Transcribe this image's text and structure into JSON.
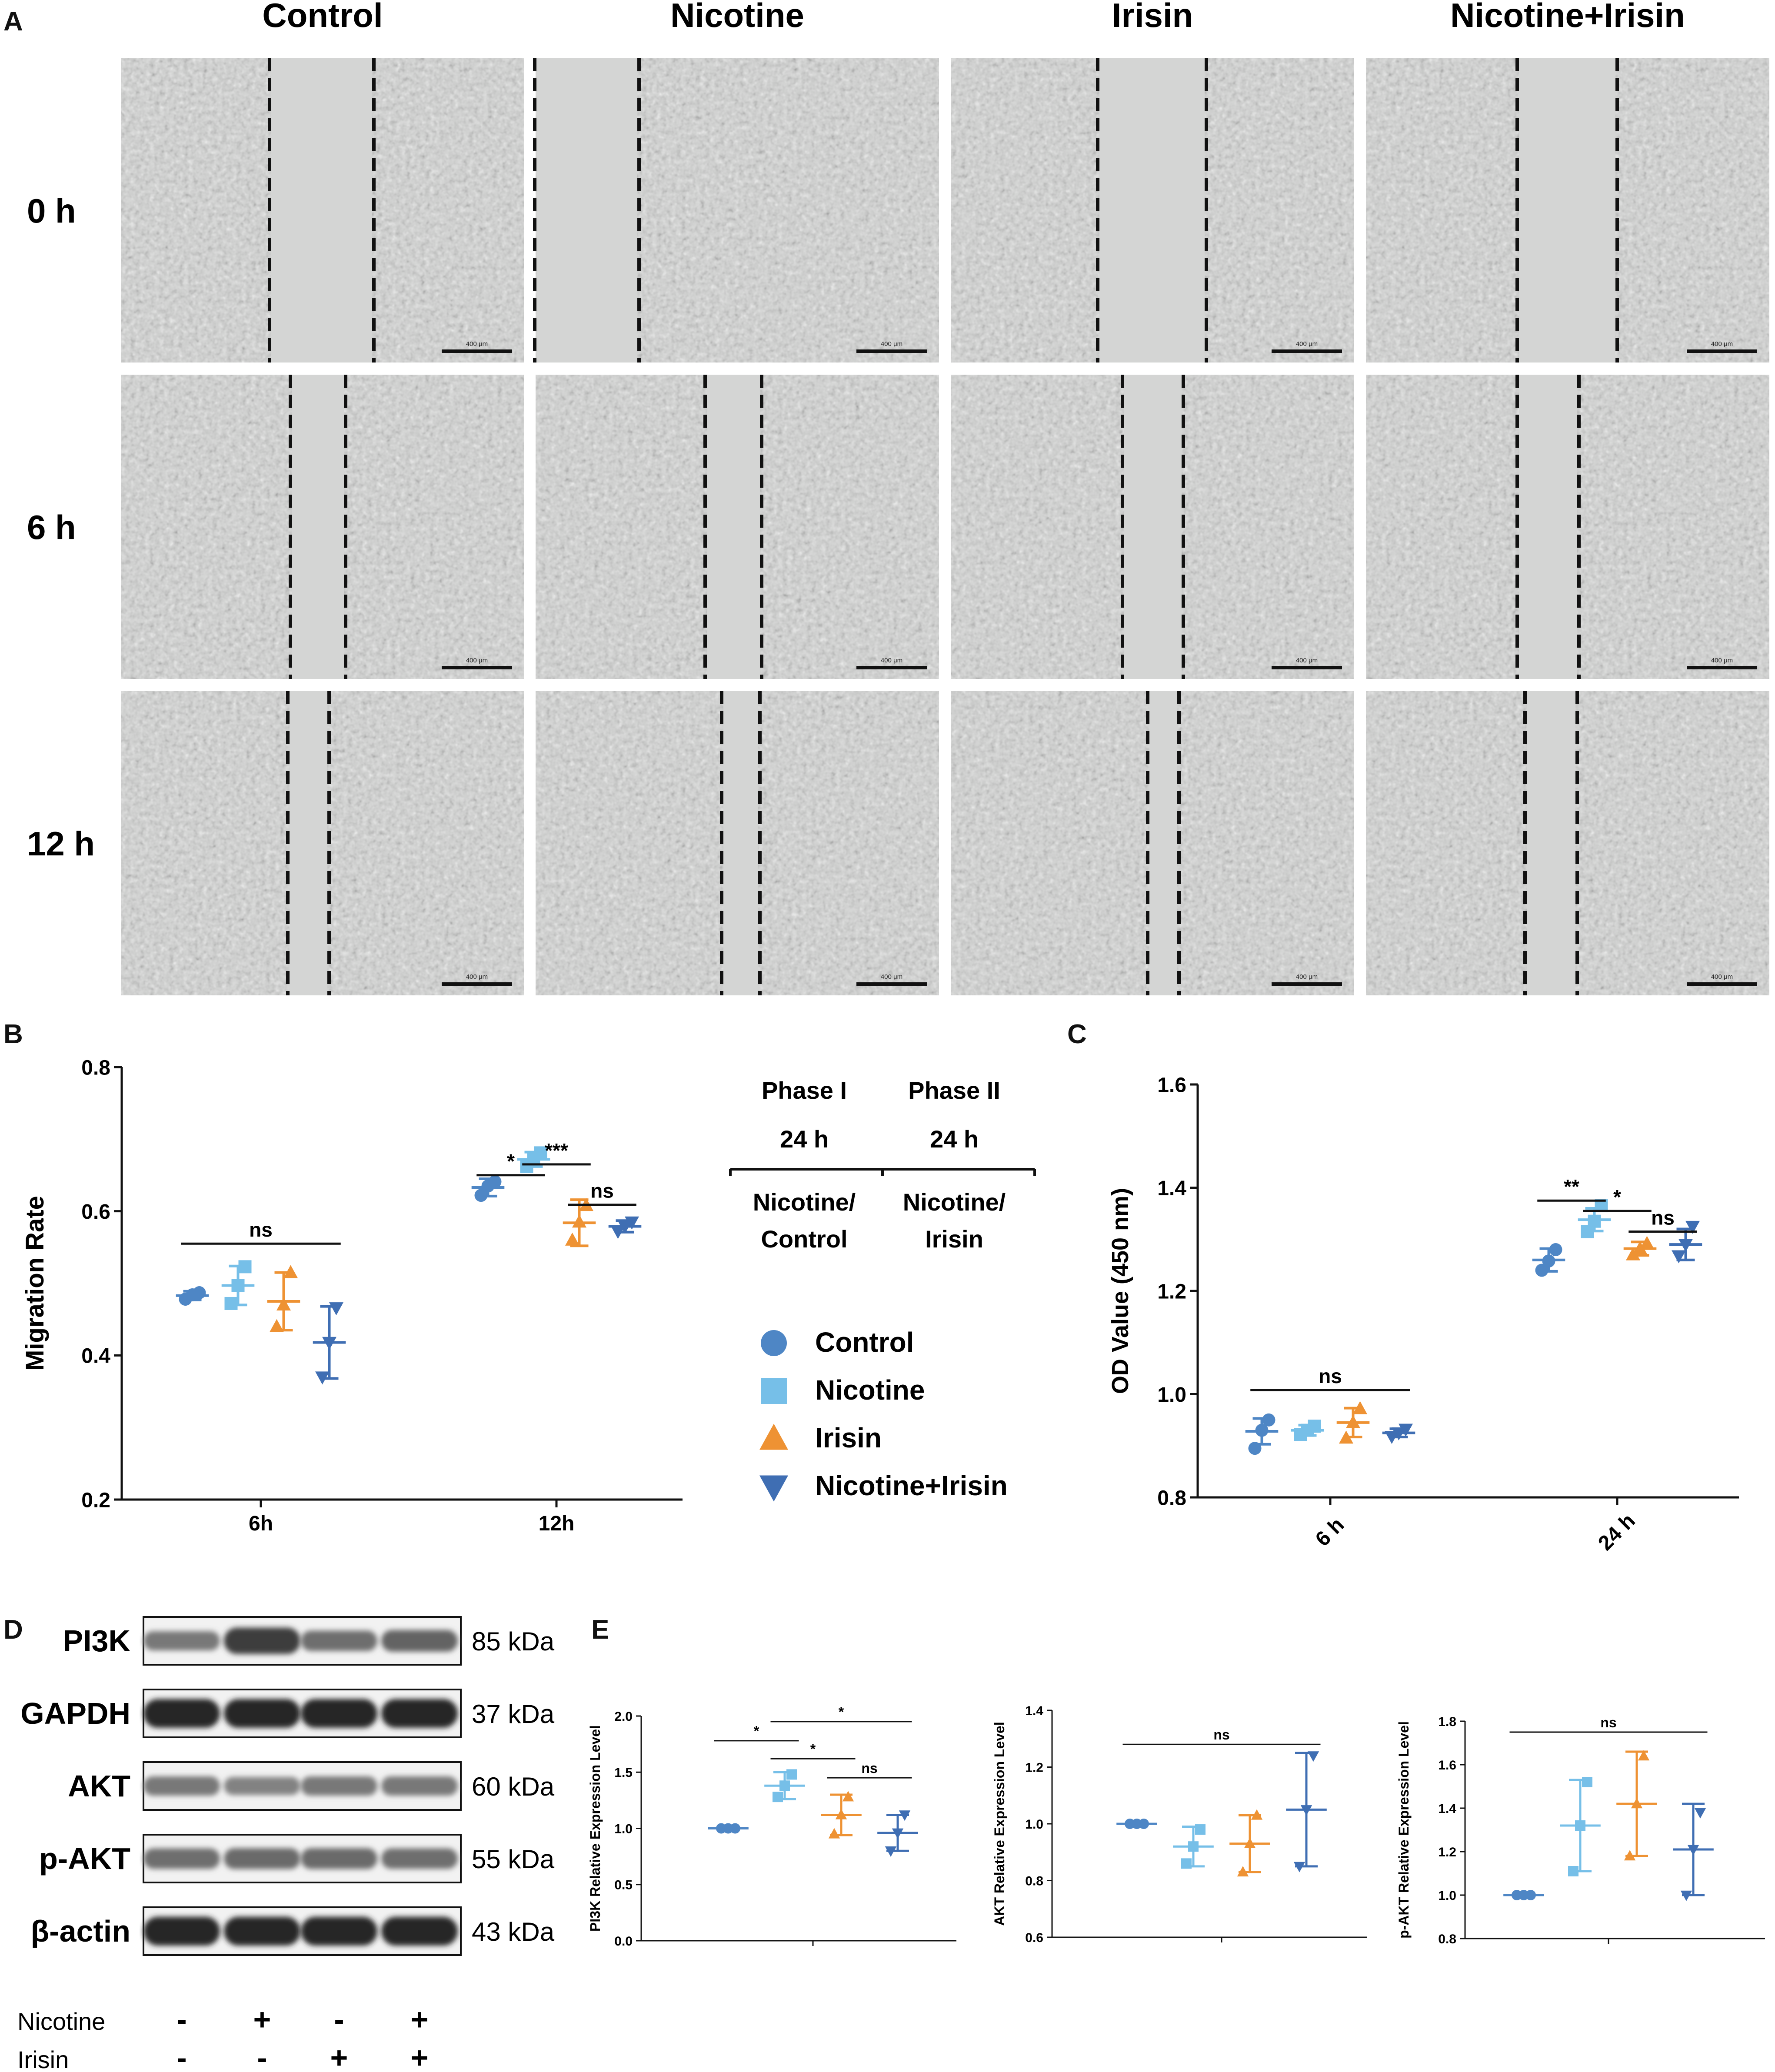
{
  "colors": {
    "control": "#4e86c5",
    "nicotine": "#76bfe8",
    "irisin": "#ee9233",
    "nicotine_irisin": "#3f6eb3",
    "micrograph_bg": "#cfd0cf",
    "axis": "#111111"
  },
  "panel_labels": {
    "a": "A",
    "b": "B",
    "c": "C",
    "d": "D",
    "e": "E"
  },
  "panel_a": {
    "columns": [
      "Control",
      "Nicotine",
      "Irisin",
      "Nicotine+Irisin"
    ],
    "rows": [
      "0 h",
      "6 h",
      "12 h"
    ],
    "scale_bar": "400 μm"
  },
  "chart_data": [
    {
      "id": "B",
      "type": "scatter",
      "ylabel": "Migration Rate",
      "ylim": [
        0.2,
        0.8
      ],
      "yticks": [
        "0.2",
        "0.4",
        "0.6",
        "0.8"
      ],
      "categories": [
        "6h",
        "12h"
      ],
      "series": [
        {
          "name": "Control",
          "values": [
            0.483,
            0.633
          ],
          "sd": [
            0.006,
            0.012
          ],
          "points": [
            [
              0.478,
              0.484,
              0.487
            ],
            [
              0.622,
              0.635,
              0.641
            ]
          ]
        },
        {
          "name": "Nicotine",
          "values": [
            0.497,
            0.672
          ],
          "sd": [
            0.027,
            0.01
          ],
          "points": [
            [
              0.472,
              0.497,
              0.523
            ],
            [
              0.662,
              0.672,
              0.681
            ]
          ]
        },
        {
          "name": "Irisin",
          "values": [
            0.475,
            0.584
          ],
          "sd": [
            0.04,
            0.032
          ],
          "points": [
            [
              0.44,
              0.47,
              0.515
            ],
            [
              0.56,
              0.585,
              0.608
            ]
          ]
        },
        {
          "name": "Nicotine+Irisin",
          "values": [
            0.418,
            0.579
          ],
          "sd": [
            0.05,
            0.008
          ],
          "points": [
            [
              0.37,
              0.418,
              0.466
            ],
            [
              0.572,
              0.579,
              0.585
            ]
          ]
        }
      ],
      "annotations": [
        {
          "text": "ns",
          "category": 0,
          "from": 0,
          "to": 3,
          "y": 0.555
        },
        {
          "text": "*",
          "category": 1,
          "from": 0,
          "to": 1,
          "y": 0.65
        },
        {
          "text": "***",
          "category": 1,
          "from": 1,
          "to": 2,
          "y": 0.665
        },
        {
          "text": "ns",
          "category": 1,
          "from": 2,
          "to": 3,
          "y": 0.609
        }
      ],
      "phase_table": {
        "headers": [
          "Phase I",
          "Phase II"
        ],
        "durations": [
          "24 h",
          "24 h"
        ],
        "treatments": [
          [
            "Nicotine/",
            "Control"
          ],
          [
            "Nicotine/",
            "Irisin"
          ]
        ]
      },
      "legend": [
        "Control",
        "Nicotine",
        "Irisin",
        "Nicotine+Irisin"
      ]
    },
    {
      "id": "C",
      "type": "scatter",
      "ylabel": "OD Value (450 nm)",
      "ylim": [
        0.8,
        1.6
      ],
      "yticks": [
        "0.8",
        "1.0",
        "1.2",
        "1.4",
        "1.6"
      ],
      "categories": [
        "6 h",
        "24 h"
      ],
      "series": [
        {
          "name": "Control",
          "values": [
            0.928,
            1.26
          ],
          "sd": [
            0.025,
            0.022
          ],
          "points": [
            [
              0.895,
              0.93,
              0.95
            ],
            [
              1.24,
              1.258,
              1.28
            ]
          ]
        },
        {
          "name": "Nicotine",
          "values": [
            0.93,
            1.338
          ],
          "sd": [
            0.01,
            0.022
          ],
          "points": [
            [
              0.922,
              0.93,
              0.938
            ],
            [
              1.315,
              1.335,
              1.365
            ]
          ]
        },
        {
          "name": "Irisin",
          "values": [
            0.945,
            1.282
          ],
          "sd": [
            0.028,
            0.013
          ],
          "points": [
            [
              0.915,
              0.945,
              0.972
            ],
            [
              1.27,
              1.282,
              1.292
            ]
          ]
        },
        {
          "name": "Nicotine+Irisin",
          "values": [
            0.925,
            1.29
          ],
          "sd": [
            0.008,
            0.03
          ],
          "points": [
            [
              0.918,
              0.925,
              0.932
            ],
            [
              1.268,
              1.29,
              1.325
            ]
          ]
        }
      ],
      "annotations": [
        {
          "text": "ns",
          "category": 0,
          "from": 0,
          "to": 3,
          "y": 1.008
        },
        {
          "text": "**",
          "category": 1,
          "from": 0,
          "to": 1,
          "y": 1.375
        },
        {
          "text": "*",
          "category": 1,
          "from": 1,
          "to": 2,
          "y": 1.355
        },
        {
          "text": "ns",
          "category": 1,
          "from": 2,
          "to": 3,
          "y": 1.315
        }
      ]
    },
    {
      "id": "E1",
      "type": "scatter",
      "ylabel": "PI3K Relative Expression Level",
      "ylim": [
        0,
        2.0
      ],
      "yticks": [
        "0.0",
        "0.5",
        "1.0",
        "1.5",
        "2.0"
      ],
      "categories": [
        ""
      ],
      "series": [
        {
          "name": "Control",
          "values": [
            1.0
          ],
          "sd": [
            0.0
          ],
          "points": [
            [
              1.0,
              1.0,
              1.0
            ]
          ]
        },
        {
          "name": "Nicotine",
          "values": [
            1.38
          ],
          "sd": [
            0.12
          ],
          "points": [
            [
              1.28,
              1.38,
              1.48
            ]
          ]
        },
        {
          "name": "Irisin",
          "values": [
            1.12
          ],
          "sd": [
            0.18
          ],
          "points": [
            [
              0.95,
              1.12,
              1.28
            ]
          ]
        },
        {
          "name": "Nicotine+Irisin",
          "values": [
            0.96
          ],
          "sd": [
            0.16
          ],
          "points": [
            [
              0.8,
              0.96,
              1.12
            ]
          ]
        }
      ],
      "annotations": [
        {
          "text": "*",
          "category": 0,
          "from": 0,
          "to": 1,
          "y": 1.78
        },
        {
          "text": "*",
          "category": 0,
          "from": 1,
          "to": 3,
          "y": 1.95
        },
        {
          "text": "*",
          "category": 0,
          "from": 1,
          "to": 2,
          "y": 1.62
        },
        {
          "text": "ns",
          "category": 0,
          "from": 2,
          "to": 3,
          "y": 1.45
        }
      ]
    },
    {
      "id": "E2",
      "type": "scatter",
      "ylabel": "AKT Relative Expression Level",
      "ylim": [
        0.6,
        1.4
      ],
      "yticks": [
        "0.6",
        "0.8",
        "1.0",
        "1.2",
        "1.4"
      ],
      "categories": [
        ""
      ],
      "series": [
        {
          "name": "Control",
          "values": [
            1.0
          ],
          "sd": [
            0.0
          ],
          "points": [
            [
              1.0,
              1.0,
              1.0
            ]
          ]
        },
        {
          "name": "Nicotine",
          "values": [
            0.92
          ],
          "sd": [
            0.07
          ],
          "points": [
            [
              0.86,
              0.92,
              0.98
            ]
          ]
        },
        {
          "name": "Irisin",
          "values": [
            0.93
          ],
          "sd": [
            0.1
          ],
          "points": [
            [
              0.83,
              0.93,
              1.03
            ]
          ]
        },
        {
          "name": "Nicotine+Irisin",
          "values": [
            1.05
          ],
          "sd": [
            0.2
          ],
          "points": [
            [
              0.85,
              1.05,
              1.24
            ]
          ]
        }
      ],
      "annotations": [
        {
          "text": "ns",
          "category": 0,
          "from": 0,
          "to": 3,
          "y": 1.28
        }
      ]
    },
    {
      "id": "E3",
      "type": "scatter",
      "ylabel": "p-AKT Relative Expression Level",
      "ylim": [
        0.8,
        1.8
      ],
      "yticks": [
        "0.8",
        "1.0",
        "1.2",
        "1.4",
        "1.6",
        "1.8"
      ],
      "categories": [
        ""
      ],
      "series": [
        {
          "name": "Control",
          "values": [
            1.0
          ],
          "sd": [
            0.0
          ],
          "points": [
            [
              1.0,
              1.0,
              1.0
            ]
          ]
        },
        {
          "name": "Nicotine",
          "values": [
            1.32
          ],
          "sd": [
            0.21
          ],
          "points": [
            [
              1.11,
              1.32,
              1.52
            ]
          ]
        },
        {
          "name": "Irisin",
          "values": [
            1.42
          ],
          "sd": [
            0.24
          ],
          "points": [
            [
              1.18,
              1.42,
              1.64
            ]
          ]
        },
        {
          "name": "Nicotine+Irisin",
          "values": [
            1.21
          ],
          "sd": [
            0.21
          ],
          "points": [
            [
              1.0,
              1.21,
              1.38
            ]
          ]
        }
      ],
      "annotations": [
        {
          "text": "ns",
          "category": 0,
          "from": 0,
          "to": 3,
          "y": 1.75
        }
      ]
    }
  ],
  "panel_d": {
    "proteins": [
      {
        "name": "PI3K",
        "size": "85 kDa",
        "intensity": [
          0.55,
          0.85,
          0.6,
          0.65
        ]
      },
      {
        "name": "GAPDH",
        "size": "37 kDa",
        "intensity": [
          0.95,
          0.95,
          0.95,
          0.95
        ]
      },
      {
        "name": "AKT",
        "size": "60 kDa",
        "intensity": [
          0.55,
          0.5,
          0.55,
          0.55
        ]
      },
      {
        "name": "p-AKT",
        "size": "55 kDa",
        "intensity": [
          0.6,
          0.62,
          0.62,
          0.6
        ]
      },
      {
        "name": "β-actin",
        "size": "43 kDa",
        "intensity": [
          0.95,
          0.95,
          0.95,
          0.95
        ]
      }
    ],
    "treatments": [
      {
        "name": "Nicotine",
        "marks": [
          "-",
          "+",
          "-",
          "+"
        ]
      },
      {
        "name": "Irisin",
        "marks": [
          "-",
          "-",
          "+",
          "+"
        ]
      }
    ]
  }
}
